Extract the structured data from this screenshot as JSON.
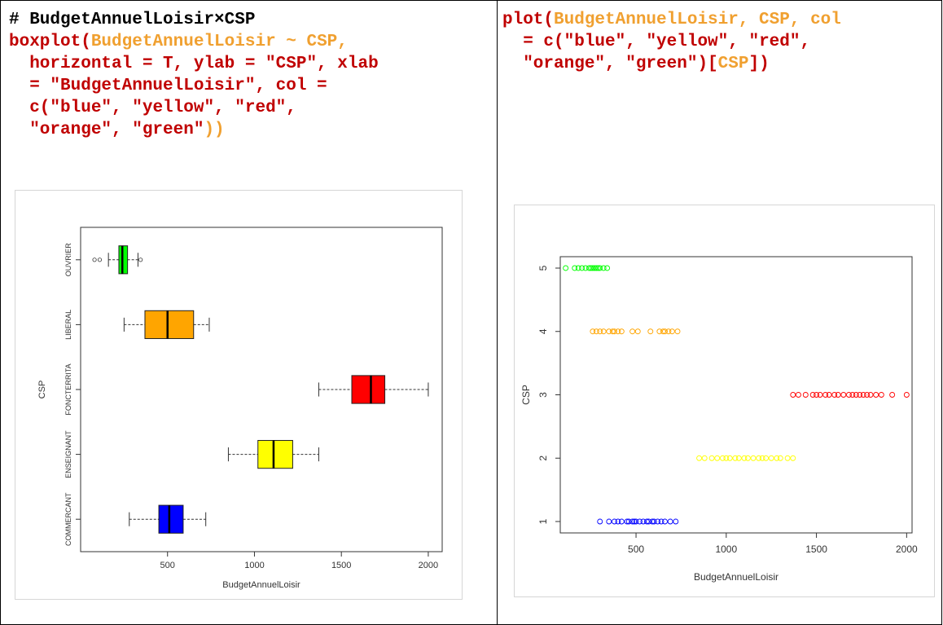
{
  "left_code": {
    "comment": "# BudgetAnnuelLoisir×CSP",
    "l1_fn": "boxplot(",
    "l1_arg": "BudgetAnnuelLoisir ~ CSP,",
    "l2_arg": "  horizontal = T, ylab = \"CSP\", xlab",
    "l3_arg": "  = \"BudgetAnnuelLoisir\", col =",
    "l4_fn": "  c(",
    "l4_arg": "\"blue\", \"yellow\", \"red\",",
    "l5_arg": "  \"orange\", \"green\"",
    "l5_close": "))"
  },
  "right_code": {
    "l1_fn": "plot(",
    "l1_arg": "BudgetAnnuelLoisir, CSP, col",
    "l2_a": "  = c(",
    "l2_b": "\"blue\", \"yellow\", \"red\",",
    "l3_a": "  \"orange\", \"green\"",
    "l3_b": ")[",
    "l3_c": "CSP",
    "l3_d": "])"
  },
  "chart_data": [
    {
      "type": "boxplot",
      "orientation": "horizontal",
      "xlabel": "BudgetAnnuelLoisir",
      "ylabel": "CSP",
      "xlim": [
        0,
        2080
      ],
      "x_ticks": [
        500,
        1000,
        1500,
        2000
      ],
      "categories": [
        "COMMERCANT",
        "ENSEIGNANT",
        "FONCTERRITA",
        "LIBERAL",
        "OUVRIER"
      ],
      "colors": [
        "#0000ff",
        "#ffff00",
        "#ff0000",
        "#ffa500",
        "#00ff00"
      ],
      "boxes": [
        {
          "whisker_low": 280,
          "q1": 450,
          "median": 510,
          "q3": 590,
          "whisker_high": 720,
          "outliers": []
        },
        {
          "whisker_low": 850,
          "q1": 1020,
          "median": 1110,
          "q3": 1220,
          "whisker_high": 1370,
          "outliers": []
        },
        {
          "whisker_low": 1370,
          "q1": 1560,
          "median": 1670,
          "q3": 1750,
          "whisker_high": 2000,
          "outliers": []
        },
        {
          "whisker_low": 250,
          "q1": 370,
          "median": 500,
          "q3": 650,
          "whisker_high": 740,
          "outliers": []
        },
        {
          "whisker_low": 160,
          "q1": 220,
          "median": 240,
          "q3": 270,
          "whisker_high": 330,
          "outliers": [
            80,
            110,
            345
          ]
        }
      ]
    },
    {
      "type": "scatter",
      "xlabel": "BudgetAnnuelLoisir",
      "ylabel": "CSP",
      "xlim": [
        80,
        2030
      ],
      "ylim": [
        0.82,
        5.18
      ],
      "x_ticks": [
        500,
        1000,
        1500,
        2000
      ],
      "y_ticks": [
        1,
        2,
        3,
        4,
        5
      ],
      "series": [
        {
          "y": 1,
          "color": "#0000ff",
          "x": [
            300,
            350,
            380,
            400,
            420,
            450,
            460,
            480,
            490,
            500,
            520,
            540,
            560,
            570,
            590,
            600,
            620,
            640,
            660,
            690,
            720
          ]
        },
        {
          "y": 2,
          "color": "#ffff00",
          "x": [
            850,
            880,
            920,
            950,
            980,
            1000,
            1020,
            1050,
            1070,
            1100,
            1120,
            1150,
            1180,
            1200,
            1220,
            1250,
            1280,
            1300,
            1340,
            1370
          ]
        },
        {
          "y": 3,
          "color": "#ff0000",
          "x": [
            1370,
            1400,
            1440,
            1480,
            1500,
            1520,
            1550,
            1570,
            1600,
            1620,
            1650,
            1680,
            1700,
            1720,
            1740,
            1760,
            1780,
            1800,
            1830,
            1860,
            1920,
            2000
          ]
        },
        {
          "y": 4,
          "color": "#ffa500",
          "x": [
            260,
            280,
            300,
            320,
            350,
            370,
            380,
            400,
            420,
            480,
            510,
            580,
            630,
            650,
            660,
            680,
            700,
            730
          ]
        },
        {
          "y": 5,
          "color": "#00ff00",
          "x": [
            110,
            160,
            180,
            200,
            220,
            240,
            250,
            260,
            270,
            280,
            290,
            300,
            320,
            340
          ]
        }
      ]
    }
  ]
}
